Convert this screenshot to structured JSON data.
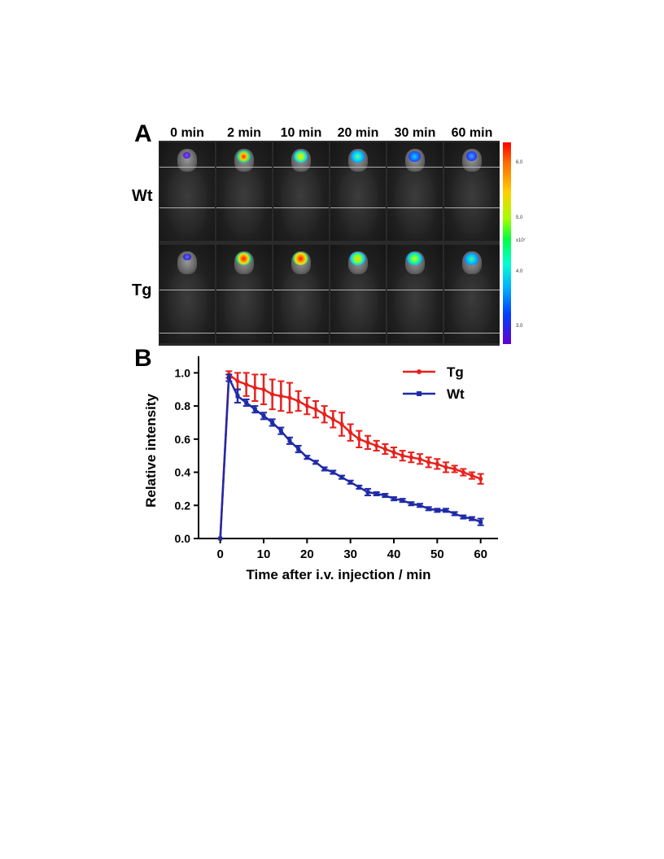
{
  "panel_a": {
    "letter": "A",
    "time_labels": [
      "0 min",
      "2 min",
      "10 min",
      "20 min",
      "30 min",
      "60 min"
    ],
    "row_labels": [
      "Wt",
      "Tg"
    ],
    "colorbar": {
      "ticks": [
        "6.0",
        "5.0",
        "4.0",
        "3.0"
      ],
      "unit": "x10⁷"
    }
  },
  "panel_b": {
    "letter": "B"
  },
  "chart_data": {
    "type": "line",
    "xlabel": "Time after i.v. injection / min",
    "ylabel": "Relative intensity",
    "xlim": [
      -5,
      64
    ],
    "ylim": [
      0,
      1.1
    ],
    "xticks": [
      0,
      10,
      20,
      30,
      40,
      50,
      60
    ],
    "yticks": [
      0.0,
      0.2,
      0.4,
      0.6,
      0.8,
      1.0
    ],
    "ytick_labels": [
      "0.0",
      "0.2",
      "0.4",
      "0.6",
      "0.8",
      "1.0"
    ],
    "legend_position": "top-right",
    "grid": false,
    "series": [
      {
        "name": "Tg",
        "color": "#e8201c",
        "marker": "circle",
        "x": [
          0,
          2,
          4,
          6,
          8,
          10,
          12,
          14,
          16,
          18,
          20,
          22,
          24,
          26,
          28,
          30,
          32,
          34,
          36,
          38,
          40,
          42,
          44,
          46,
          48,
          50,
          52,
          54,
          56,
          58,
          60
        ],
        "y": [
          0.0,
          0.99,
          0.95,
          0.93,
          0.91,
          0.9,
          0.87,
          0.86,
          0.85,
          0.83,
          0.8,
          0.78,
          0.75,
          0.72,
          0.69,
          0.64,
          0.6,
          0.58,
          0.56,
          0.54,
          0.52,
          0.5,
          0.49,
          0.48,
          0.46,
          0.45,
          0.43,
          0.42,
          0.4,
          0.38,
          0.36
        ],
        "err": [
          0,
          0.02,
          0.05,
          0.07,
          0.08,
          0.09,
          0.09,
          0.09,
          0.09,
          0.06,
          0.05,
          0.05,
          0.05,
          0.05,
          0.07,
          0.05,
          0.05,
          0.04,
          0.03,
          0.03,
          0.03,
          0.03,
          0.03,
          0.03,
          0.03,
          0.03,
          0.03,
          0.02,
          0.02,
          0.02,
          0.03
        ]
      },
      {
        "name": "Wt",
        "color": "#1f2aa8",
        "marker": "square",
        "x": [
          0,
          2,
          4,
          6,
          8,
          10,
          12,
          14,
          16,
          18,
          20,
          22,
          24,
          26,
          28,
          30,
          32,
          34,
          36,
          38,
          40,
          42,
          44,
          46,
          48,
          50,
          52,
          54,
          56,
          58,
          60
        ],
        "y": [
          0.0,
          0.97,
          0.86,
          0.82,
          0.78,
          0.74,
          0.7,
          0.65,
          0.59,
          0.54,
          0.49,
          0.46,
          0.42,
          0.4,
          0.37,
          0.34,
          0.31,
          0.28,
          0.27,
          0.26,
          0.24,
          0.23,
          0.21,
          0.2,
          0.18,
          0.17,
          0.17,
          0.15,
          0.13,
          0.12,
          0.1
        ],
        "err": [
          0,
          0.02,
          0.04,
          0.02,
          0.02,
          0.02,
          0.02,
          0.02,
          0.02,
          0.02,
          0.01,
          0.01,
          0.01,
          0.01,
          0.01,
          0.01,
          0.01,
          0.02,
          0.01,
          0.01,
          0.01,
          0.01,
          0.01,
          0.01,
          0.01,
          0.01,
          0.01,
          0.01,
          0.01,
          0.01,
          0.02
        ]
      }
    ]
  }
}
